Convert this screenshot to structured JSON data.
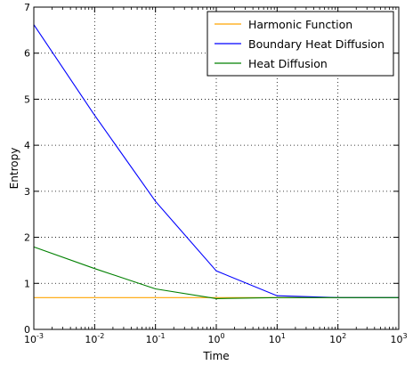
{
  "chart_data": {
    "type": "line",
    "title": "",
    "xlabel": "Time",
    "ylabel": "Entropy",
    "x_scale": "log",
    "x": [
      0.001,
      0.01,
      0.1,
      1,
      10,
      100,
      1000
    ],
    "xlim": [
      0.001,
      1000
    ],
    "ylim": [
      0,
      7
    ],
    "x_ticks": [
      {
        "base": "10",
        "exp": "-3"
      },
      {
        "base": "10",
        "exp": "-2"
      },
      {
        "base": "10",
        "exp": "-1"
      },
      {
        "base": "10",
        "exp": "0"
      },
      {
        "base": "10",
        "exp": "1"
      },
      {
        "base": "10",
        "exp": "2"
      },
      {
        "base": "10",
        "exp": "3"
      }
    ],
    "y_ticks": [
      "0",
      "1",
      "2",
      "3",
      "4",
      "5",
      "6",
      "7"
    ],
    "grid": true,
    "grid_style": "dotted",
    "legend_position": "top-right",
    "series": [
      {
        "name": "Harmonic Function",
        "color": "#ffa500",
        "values": [
          0.69,
          0.69,
          0.69,
          0.69,
          0.69,
          0.69,
          0.69
        ]
      },
      {
        "name": "Boundary Heat Diffusion",
        "color": "#0000ff",
        "values": [
          6.62,
          4.65,
          2.78,
          1.27,
          0.73,
          0.69,
          0.69
        ]
      },
      {
        "name": "Heat Diffusion",
        "color": "#008000",
        "values": [
          1.79,
          1.32,
          0.88,
          0.67,
          0.69,
          0.69,
          0.69
        ]
      }
    ]
  }
}
